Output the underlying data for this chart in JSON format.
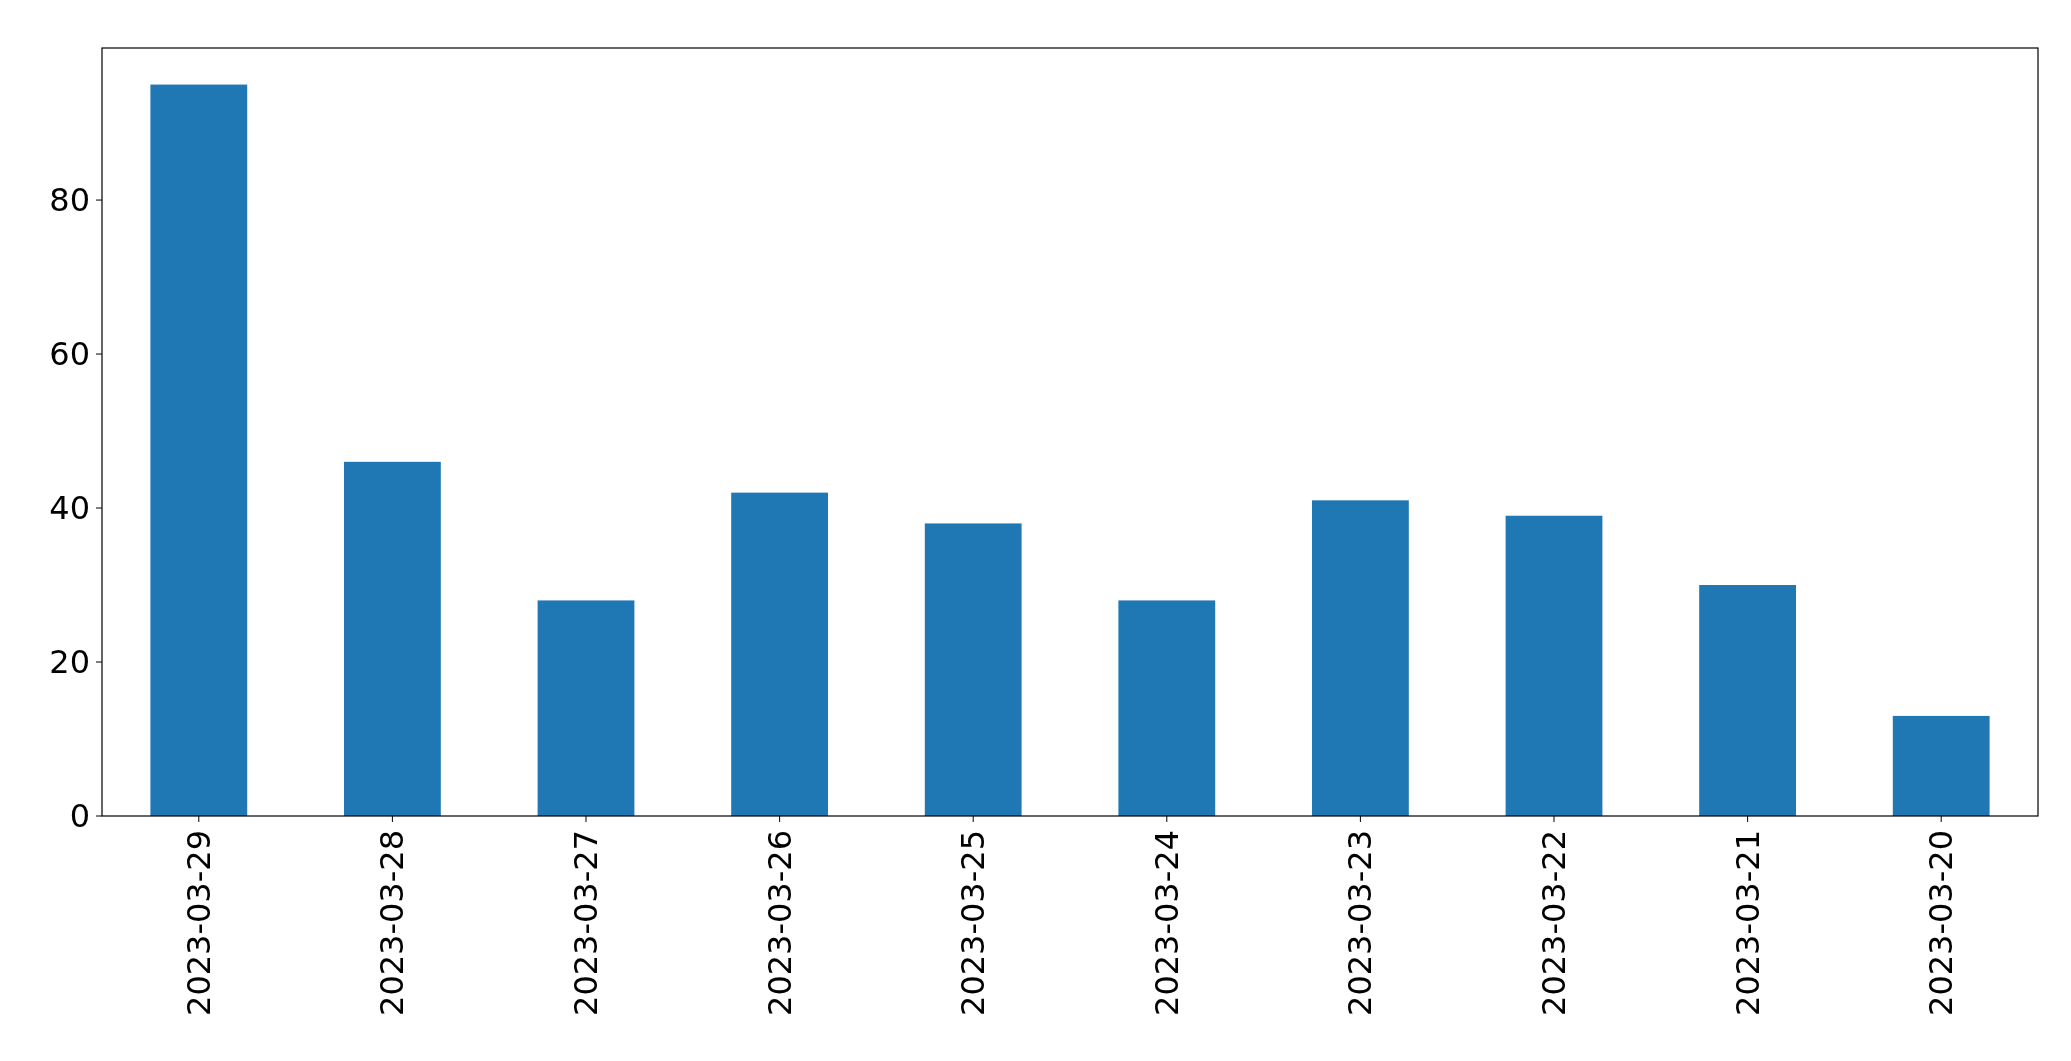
{
  "chart_data": {
    "type": "bar",
    "categories": [
      "2023-03-29",
      "2023-03-28",
      "2023-03-27",
      "2023-03-26",
      "2023-03-25",
      "2023-03-24",
      "2023-03-23",
      "2023-03-22",
      "2023-03-21",
      "2023-03-20"
    ],
    "values": [
      95,
      46,
      28,
      42,
      38,
      28,
      41,
      39,
      30,
      13
    ],
    "color": "#1f77b4",
    "ylim": [
      0,
      99.75
    ],
    "yticks": [
      0,
      20,
      40,
      60,
      80
    ],
    "grid": false
  }
}
